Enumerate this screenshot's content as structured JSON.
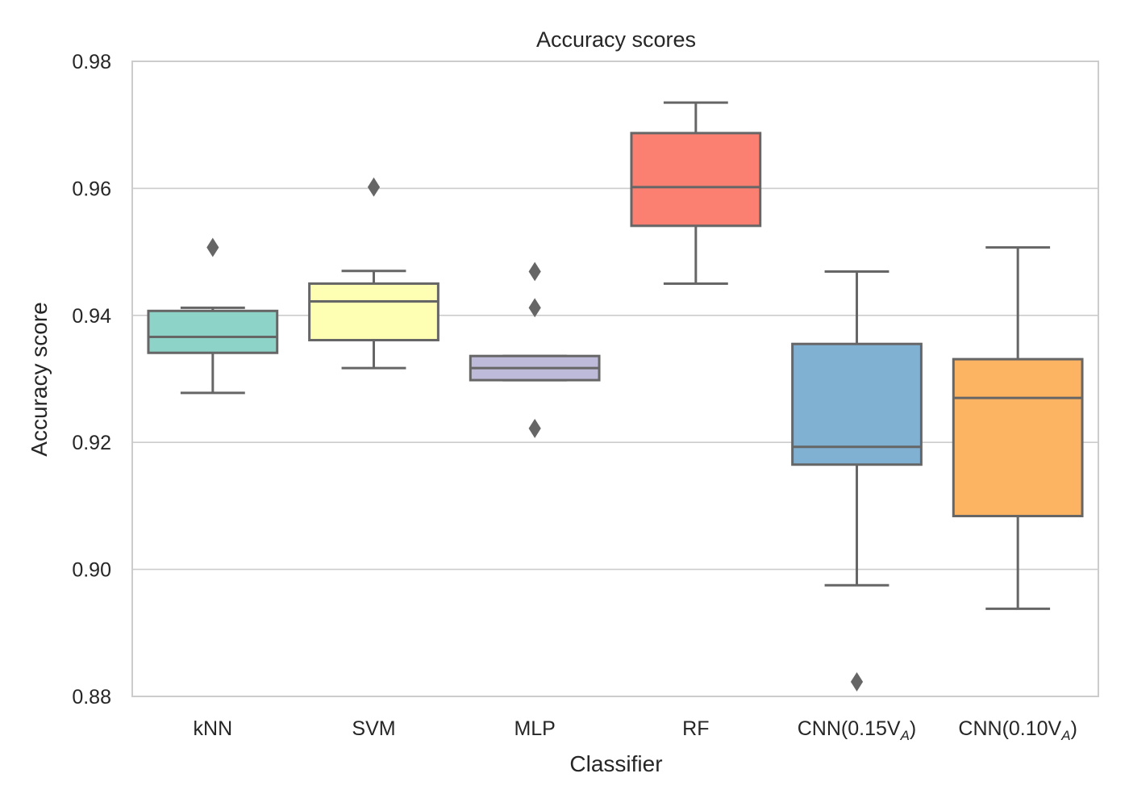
{
  "chart_data": {
    "type": "box",
    "title": "Accuracy scores",
    "xlabel": "Classifier",
    "ylabel": "Accuracy score",
    "ylim": [
      0.88,
      0.98
    ],
    "yticks": [
      "0.88",
      "0.90",
      "0.92",
      "0.94",
      "0.96",
      "0.98"
    ],
    "grid": "horizontal",
    "categories": [
      {
        "main": "kNN",
        "sub": ""
      },
      {
        "main": "SVM",
        "sub": ""
      },
      {
        "main": "MLP",
        "sub": ""
      },
      {
        "main": "RF",
        "sub": ""
      },
      {
        "main": "CNN(0.15V",
        "sub": "A",
        "tail": ")"
      },
      {
        "main": "CNN(0.10V",
        "sub": "A",
        "tail": ")"
      }
    ],
    "boxes": [
      {
        "whisker_low": 0.9278,
        "q1": 0.9341,
        "median": 0.9366,
        "q3": 0.9407,
        "whisker_high": 0.9412,
        "outliers": [
          0.9507
        ],
        "color": "#8dd3c7"
      },
      {
        "whisker_low": 0.9317,
        "q1": 0.9361,
        "median": 0.9422,
        "q3": 0.945,
        "whisker_high": 0.947,
        "outliers": [
          0.9602
        ],
        "color": "#ffffb3"
      },
      {
        "whisker_low": 0.9298,
        "q1": 0.9298,
        "median": 0.9317,
        "q3": 0.9336,
        "whisker_high": 0.9336,
        "outliers": [
          0.9222,
          0.9412,
          0.9469
        ],
        "color": "#bebada"
      },
      {
        "whisker_low": 0.945,
        "q1": 0.9541,
        "median": 0.9602,
        "q3": 0.9687,
        "whisker_high": 0.9735,
        "outliers": [],
        "color": "#fb8072"
      },
      {
        "whisker_low": 0.8975,
        "q1": 0.9165,
        "median": 0.9193,
        "q3": 0.9355,
        "whisker_high": 0.9469,
        "outliers": [
          0.8823
        ],
        "color": "#80b1d3"
      },
      {
        "whisker_low": 0.8938,
        "q1": 0.9084,
        "median": 0.927,
        "q3": 0.9331,
        "whisker_high": 0.9507,
        "outliers": [],
        "color": "#fdb462"
      }
    ]
  }
}
